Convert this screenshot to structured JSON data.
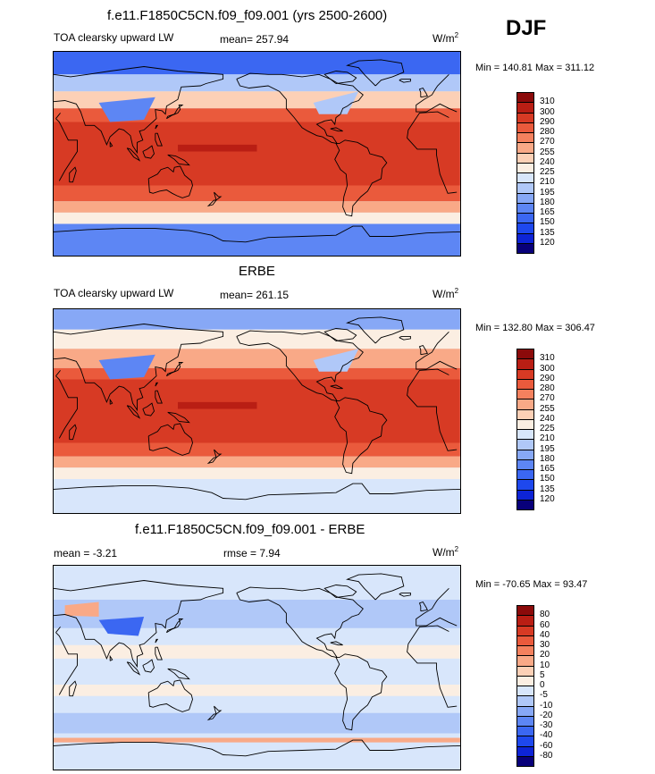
{
  "season": "DJF",
  "colors": {
    "coast": "#000000",
    "absolute_scale": [
      "#08007a",
      "#0d24d6",
      "#1e48ee",
      "#3b67f2",
      "#5d86f4",
      "#87a8f6",
      "#b0c8f8",
      "#d8e6fb",
      "#fbeee2",
      "#fcd0b6",
      "#f9a987",
      "#f4815e",
      "#ea5a3c",
      "#d73a24",
      "#b91e14",
      "#8b0a0a"
    ],
    "diff_scale": [
      "#08007a",
      "#0d24d6",
      "#1e48ee",
      "#3b67f2",
      "#5d86f4",
      "#87a8f6",
      "#b0c8f8",
      "#d8e6fb",
      "#fbeee2",
      "#fcd0b6",
      "#f9a987",
      "#f4815e",
      "#ea5a3c",
      "#d73a24",
      "#b91e14",
      "#8b0a0a"
    ]
  },
  "chart_data": [
    {
      "type": "heatmap",
      "title": "f.e11.F1850C5CN.f09_f09.001 (yrs 2500-2600)",
      "variable_label": "TOA clearsky upward LW",
      "stat_label": "mean= 257.94",
      "units_label": "W/m",
      "units_sup": "2",
      "minmax_label": "Min = 140.81 Max = 311.12",
      "min": 140.81,
      "max": 311.12,
      "mean": 257.94,
      "colorbar_levels": [
        "120",
        "135",
        "150",
        "165",
        "180",
        "195",
        "210",
        "225",
        "240",
        "255",
        "270",
        "280",
        "290",
        "300",
        "310"
      ],
      "field_scheme": "model"
    },
    {
      "type": "heatmap",
      "title": "ERBE",
      "variable_label": "TOA clearsky upward LW",
      "stat_label": "mean= 261.15",
      "units_label": "W/m",
      "units_sup": "2",
      "minmax_label": "Min = 132.80 Max = 306.47",
      "min": 132.8,
      "max": 306.47,
      "mean": 261.15,
      "colorbar_levels": [
        "120",
        "135",
        "150",
        "165",
        "180",
        "195",
        "210",
        "225",
        "240",
        "255",
        "270",
        "280",
        "290",
        "300",
        "310"
      ],
      "field_scheme": "obs"
    },
    {
      "type": "heatmap",
      "title": "f.e11.F1850C5CN.f09_f09.001 - ERBE",
      "stat_label": "mean =  -3.21",
      "rmse_label": "rmse =   7.94",
      "units_label": "W/m",
      "units_sup": "2",
      "minmax_label": "Min = -70.65 Max =  93.47",
      "min": -70.65,
      "max": 93.47,
      "mean": -3.21,
      "rmse": 7.94,
      "colorbar_levels": [
        "-80",
        "-60",
        "-40",
        "-30",
        "-20",
        "-10",
        "-5",
        "0",
        "5",
        "10",
        "20",
        "30",
        "40",
        "60",
        "80"
      ],
      "field_scheme": "diff"
    }
  ]
}
